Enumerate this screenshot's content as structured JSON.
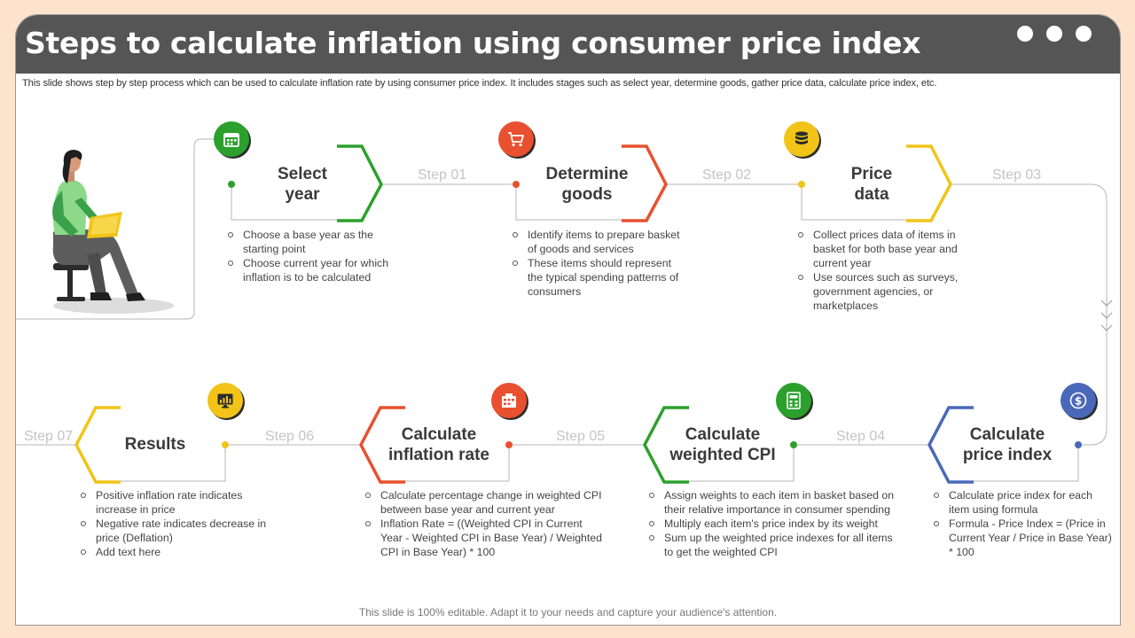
{
  "title": "Steps to calculate inflation using consumer price index",
  "subtitle": "This slide shows step by step process which can be used to calculate inflation rate by using consumer price index. It includes stages such as select year, determine goods, gather price data, calculate price index, etc.",
  "footer": "This slide is 100% editable. Adapt it to your needs and capture your audience's attention.",
  "colors": {
    "header": "#555555",
    "green": "#2ca02c",
    "red": "#e8502f",
    "yellow": "#f2c418",
    "blue": "#4a68b9"
  },
  "stages": [
    {
      "title_line1": "Select",
      "title_line2": "year",
      "step_label": "Step 01",
      "color": "#2ca02c",
      "icon": "calendar-icon",
      "bullets": [
        "Choose a base year as the starting point",
        "Choose current year for which inflation is to be calculated"
      ]
    },
    {
      "title_line1": "Determine",
      "title_line2": "goods",
      "step_label": "Step 02",
      "color": "#e8502f",
      "icon": "shopping-cart-icon",
      "bullets": [
        "Identify items to prepare basket of goods and services",
        "These items should represent the typical spending patterns of consumers"
      ]
    },
    {
      "title_line1": "Price",
      "title_line2": "data",
      "step_label": "Step 03",
      "color": "#f2c418",
      "icon": "database-icon",
      "bullets": [
        "Collect prices data of items in basket for both base year and current year",
        "Use sources such as surveys, government  agencies, or marketplaces"
      ]
    },
    {
      "title_line1": "Calculate",
      "title_line2": "price index",
      "step_label": "Step 04",
      "color": "#4a68b9",
      "icon": "dollar-coin-icon",
      "bullets": [
        "Calculate price index for each item using formula",
        "Formula - Price Index = (Price in Current  Year / Price in Base Year) * 100"
      ]
    },
    {
      "title_line1": "Calculate",
      "title_line2": "weighted CPI",
      "step_label": "Step 05",
      "color": "#2ca02c",
      "icon": "calculator-icon",
      "bullets": [
        "Assign weights to each item in basket based on their relative importance in consumer spending",
        "Multiply each item's price index by its weight",
        "Sum up the weighted price indexes for all items to get the weighted CPI"
      ]
    },
    {
      "title_line1": "Calculate",
      "title_line2": "inflation rate",
      "step_label": "Step 06",
      "color": "#e8502f",
      "icon": "calculator-sheet-icon",
      "bullets": [
        "Calculate percentage change in weighted CPI between base year and current year",
        "Inflation Rate = ((Weighted CPI in Current  Year - Weighted CPI in Base Year) / Weighted CPI in Base Year) * 100"
      ]
    },
    {
      "title_line1": "Results",
      "title_line2": "",
      "step_label": "Step 07",
      "color": "#f2c418",
      "icon": "monitor-chart-icon",
      "bullets": [
        "Positive inflation rate indicates increase in price",
        "Negative  rate indicates decrease in price (Deflation)",
        "Add text here"
      ]
    }
  ]
}
